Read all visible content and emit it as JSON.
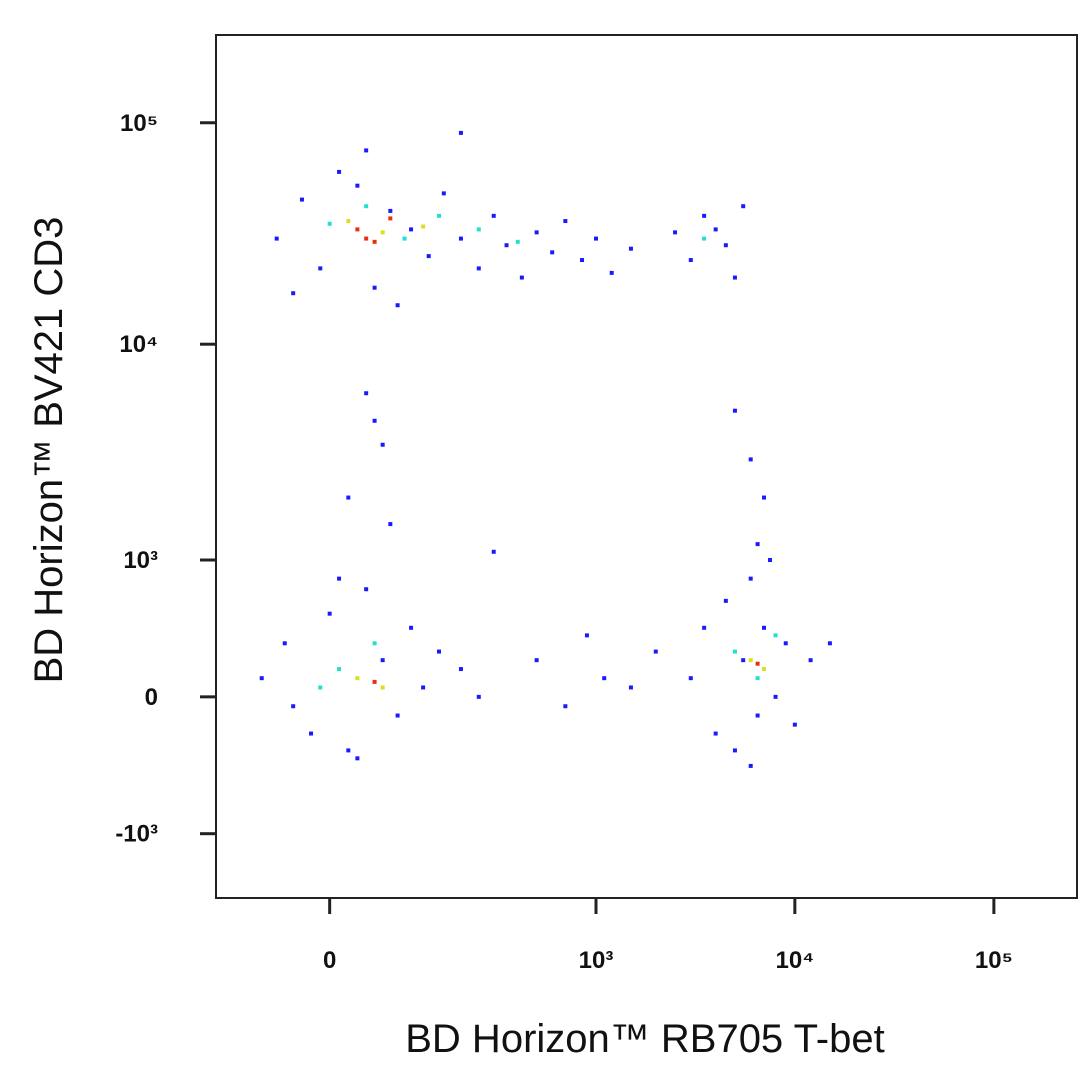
{
  "chart_data": {
    "type": "scatter",
    "x_label": "BD Horizon™ RB705 T-bet",
    "y_label": "BD Horizon™ BV421  CD3",
    "xscale": "biexponential",
    "yscale": "biexponential",
    "xlim": [
      -159,
      261600
    ],
    "ylim": [
      -2040,
      249000
    ],
    "xticks": [
      0,
      {
        "value": 1000,
        "label": "10³"
      },
      {
        "value": 10000,
        "label": "10⁴"
      },
      {
        "value": 100000,
        "label": "10⁵"
      }
    ],
    "yticks": [
      {
        "value": -1000,
        "label": "-10³"
      },
      0,
      {
        "value": 1000,
        "label": "10³"
      },
      {
        "value": 10000,
        "label": "10⁴"
      },
      {
        "value": 100000,
        "label": "10⁵"
      }
    ],
    "series": [
      {
        "color": "#1a1aff",
        "x": [
          -60,
          -30,
          -10,
          10,
          30,
          50,
          70,
          100,
          130,
          160,
          200,
          250,
          300,
          350,
          420,
          500,
          600,
          700,
          850,
          1000,
          1200,
          1500,
          2500,
          3000,
          3500,
          4500,
          5000,
          4000,
          -40,
          80,
          40,
          200,
          5500,
          40,
          60,
          20,
          70,
          50,
          5000,
          6000,
          7000,
          6500,
          300,
          -80,
          -50,
          -20,
          0,
          20,
          40,
          60,
          80,
          100,
          120,
          150,
          -40,
          10,
          30,
          200,
          250,
          3000,
          3500,
          4000,
          4500,
          5000,
          5500,
          6000,
          6500,
          7000,
          8000,
          9000,
          10000,
          12000,
          6000,
          7500,
          2000,
          1500,
          15000,
          500,
          700,
          900,
          1100
        ],
        "y": [
          30000,
          45000,
          22000,
          60000,
          52000,
          18000,
          40000,
          33000,
          25000,
          48000,
          30000,
          22000,
          38000,
          28000,
          20000,
          32000,
          26000,
          36000,
          24000,
          30000,
          21000,
          27000,
          32000,
          24000,
          38000,
          28000,
          20000,
          33000,
          17000,
          15000,
          75000,
          90000,
          42000,
          6000,
          3500,
          2000,
          1500,
          4500,
          5000,
          3000,
          2000,
          1200,
          1100,
          100,
          300,
          -200,
          500,
          -300,
          700,
          200,
          -100,
          400,
          50,
          250,
          -50,
          800,
          -350,
          150,
          0,
          100,
          400,
          -200,
          600,
          -300,
          200,
          800,
          -100,
          400,
          0,
          300,
          -150,
          200,
          -400,
          1000,
          250,
          50,
          300,
          200,
          -50,
          350,
          100
        ]
      },
      {
        "color": "#22e0d0",
        "x": [
          0,
          40,
          90,
          150,
          250,
          400,
          3500,
          10,
          50,
          -10,
          5000,
          6500,
          8000
        ],
        "y": [
          35000,
          42000,
          30000,
          38000,
          33000,
          29000,
          30000,
          150,
          300,
          50,
          250,
          100,
          350
        ]
      },
      {
        "color": "#d8e020",
        "x": [
          20,
          60,
          120,
          30,
          60,
          6000,
          7000
        ],
        "y": [
          36000,
          32000,
          34000,
          100,
          50,
          200,
          150
        ]
      },
      {
        "color": "#e83010",
        "x": [
          30,
          50,
          70,
          40,
          50,
          6500
        ],
        "y": [
          33000,
          29000,
          37000,
          30000,
          80,
          180
        ]
      }
    ]
  }
}
